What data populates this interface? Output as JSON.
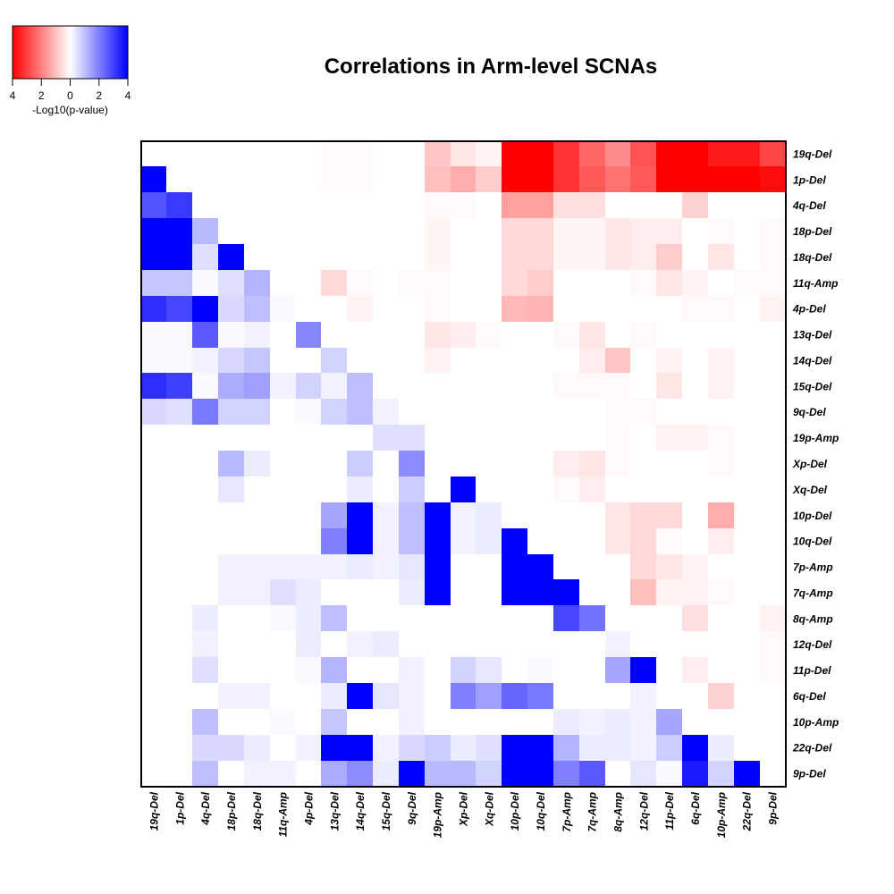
{
  "chart_data": {
    "type": "heatmap",
    "title": "Correlations in Arm-level SCNAs",
    "labels": [
      "19q-Del",
      "1p-Del",
      "4q-Del",
      "18p-Del",
      "18q-Del",
      "11q-Amp",
      "4p-Del",
      "13q-Del",
      "14q-Del",
      "15q-Del",
      "9q-Del",
      "19p-Amp",
      "Xp-Del",
      "Xq-Del",
      "10p-Del",
      "10q-Del",
      "7p-Amp",
      "7q-Amp",
      "8q-Amp",
      "12q-Del",
      "11p-Del",
      "6q-Del",
      "10p-Amp",
      "22q-Del",
      "9p-Del"
    ],
    "row_labels": [
      "19q-Del",
      "1p-Del",
      "4q-Del",
      "18p-Del",
      "18q-Del",
      "11q-Amp",
      "4p-Del",
      "13q-Del",
      "14q-Del",
      "15q-Del",
      "9q-Del",
      "19p-Amp",
      "Xp-Del",
      "Xq-Del",
      "10p-Del",
      "10q-Del",
      "7p-Amp",
      "7q-Amp",
      "8q-Amp",
      "12q-Del",
      "11p-Del",
      "6q-Del",
      "10p-Amp",
      "22q-Del",
      "9p-Del"
    ],
    "col_labels": [
      "19q-Del",
      "1p-Del",
      "4q-Del",
      "18p-Del",
      "18q-Del",
      "11q-Amp",
      "4p-Del",
      "13q-Del",
      "14q-Del",
      "15q-Del",
      "9q-Del",
      "19p-Amp",
      "Xp-Del",
      "Xq-Del",
      "10p-Del",
      "10q-Del",
      "7p-Amp",
      "7q-Amp",
      "8q-Amp",
      "12q-Del",
      "11p-Del",
      "6q-Del",
      "10p-Amp",
      "22q-Del",
      "9p-Del"
    ],
    "value_description": "Signed -Log10(p-value): positive (blue) below diagonal, negative (red) above diagonal",
    "color_scale": {
      "min": -4,
      "max": 4,
      "low_color": "#ff0000",
      "mid_color": "#ffffff",
      "high_color": "#0000ff"
    },
    "legend": {
      "title": "-Log10(p-value)",
      "ticks": [
        "4",
        "2",
        "0",
        "2",
        "4"
      ],
      "tick_values": [
        -4,
        -2,
        0,
        2,
        4
      ],
      "position": "top-left"
    },
    "values": [
      [
        0,
        0,
        0,
        0,
        0,
        0,
        0,
        -0.1,
        -0.1,
        0,
        0,
        -0.9,
        -0.4,
        -0.2,
        -4,
        -4,
        -3.2,
        -2.4,
        -1.8,
        -2.7,
        -4,
        -4,
        -3.6,
        -3.6,
        -2.9
      ],
      [
        4,
        0,
        0,
        0,
        0,
        0,
        0,
        -0.1,
        -0.1,
        0,
        0,
        -1.0,
        -1.3,
        -0.8,
        -4,
        -4,
        -3.2,
        -2.6,
        -2.2,
        -2.6,
        -4,
        -4,
        -4,
        -4,
        -3.8
      ],
      [
        2.7,
        3.1,
        0,
        0,
        0,
        0,
        0,
        0,
        0,
        0,
        0,
        -0.1,
        -0.1,
        0,
        -1.5,
        -1.5,
        -0.5,
        -0.5,
        0,
        0,
        0,
        -0.7,
        0,
        0,
        0
      ],
      [
        4,
        4,
        1.1,
        0,
        0,
        0,
        0,
        0,
        0,
        0,
        0,
        -0.15,
        0,
        0,
        -0.6,
        -0.6,
        -0.15,
        -0.15,
        -0.4,
        -0.3,
        -0.3,
        0,
        -0.1,
        0,
        -0.1
      ],
      [
        4,
        4,
        0.5,
        4,
        0,
        0,
        0,
        0,
        0,
        0,
        0,
        -0.15,
        0,
        0,
        -0.6,
        -0.6,
        -0.15,
        -0.15,
        -0.4,
        -0.3,
        -0.8,
        0,
        -0.4,
        0,
        -0.1
      ],
      [
        0.9,
        0.9,
        0.1,
        0.5,
        1.2,
        0,
        0,
        -0.6,
        -0.1,
        0,
        -0.1,
        -0.1,
        0,
        0,
        -0.6,
        -0.8,
        0,
        0,
        0,
        -0.1,
        -0.4,
        -0.2,
        0,
        -0.1,
        -0.1
      ],
      [
        3.3,
        2.9,
        4,
        0.6,
        1.0,
        0.1,
        0,
        0,
        -0.2,
        0,
        0,
        -0.1,
        0,
        0,
        -1.1,
        -1.2,
        0,
        0,
        0,
        0,
        0,
        -0.1,
        -0.1,
        0,
        -0.2
      ],
      [
        0.1,
        0.1,
        2.6,
        0.1,
        0.2,
        0,
        1.9,
        0,
        0,
        0,
        0,
        -0.4,
        -0.3,
        -0.1,
        0,
        0,
        -0.1,
        -0.4,
        0,
        -0.1,
        0,
        0,
        0,
        0,
        0
      ],
      [
        0.1,
        0.1,
        0.2,
        0.6,
        0.9,
        0,
        0,
        0.7,
        0,
        0,
        0,
        -0.2,
        0,
        0,
        0,
        0,
        0,
        -0.3,
        -0.9,
        0,
        -0.2,
        0,
        -0.2,
        0,
        0
      ],
      [
        3.3,
        3.0,
        0.1,
        1.3,
        1.5,
        0.2,
        0.7,
        0.2,
        1.0,
        0,
        0,
        0,
        0,
        0,
        0,
        0,
        -0.1,
        -0.1,
        -0.1,
        0,
        -0.4,
        0,
        -0.2,
        0,
        0
      ],
      [
        0.6,
        0.5,
        2.1,
        0.7,
        0.7,
        0,
        0.1,
        0.7,
        1.0,
        0.2,
        0,
        0,
        0,
        0,
        0,
        0,
        0,
        0,
        -0.1,
        -0.1,
        0,
        0,
        0,
        0,
        0
      ],
      [
        0,
        0,
        0,
        0,
        0,
        0,
        0,
        0,
        0,
        0.5,
        0.5,
        0,
        0,
        0,
        0,
        0,
        0,
        0,
        -0.1,
        0,
        -0.2,
        -0.2,
        -0.1,
        0,
        0
      ],
      [
        0,
        0,
        0,
        1.1,
        0.3,
        0,
        0,
        0,
        0.8,
        0,
        1.8,
        0,
        0,
        0,
        0,
        0,
        -0.3,
        -0.4,
        -0.1,
        0,
        0,
        0,
        -0.1,
        0,
        0
      ],
      [
        0,
        0,
        0,
        0.4,
        0,
        0,
        0,
        0,
        0.3,
        0,
        0.8,
        0,
        4,
        0,
        0,
        0,
        -0.1,
        -0.3,
        0,
        0,
        0,
        0,
        0,
        0,
        0
      ],
      [
        0,
        0,
        0,
        0,
        0,
        0,
        0,
        1.4,
        4,
        0.2,
        1.0,
        4,
        0.2,
        0.3,
        0,
        0,
        0,
        0,
        -0.4,
        -0.6,
        -0.6,
        0,
        -1.3,
        0,
        0
      ],
      [
        0,
        0,
        0,
        0,
        0,
        0,
        0,
        2.0,
        4,
        0.2,
        1.0,
        4,
        0.2,
        0.3,
        4,
        0,
        0,
        0,
        -0.4,
        -0.6,
        -0.1,
        0,
        -0.3,
        0,
        0
      ],
      [
        0,
        0,
        0,
        0.2,
        0.2,
        0.2,
        0.2,
        0.2,
        0.3,
        0.2,
        0.4,
        4,
        0,
        0,
        4,
        4,
        0,
        0,
        0,
        -0.6,
        -0.4,
        -0.2,
        0,
        0,
        0
      ],
      [
        0,
        0,
        0,
        0.2,
        0.2,
        0.5,
        0.3,
        0,
        0,
        0,
        0.3,
        4,
        0,
        0,
        4,
        4,
        4,
        0,
        0,
        -1.0,
        -0.2,
        -0.2,
        -0.1,
        0,
        0
      ],
      [
        0,
        0,
        0.3,
        0,
        0,
        0.1,
        0.3,
        1.0,
        0,
        0,
        0,
        0,
        0,
        0,
        0,
        0,
        2.9,
        2.2,
        0,
        0,
        0,
        -0.5,
        0,
        0,
        -0.2
      ],
      [
        0,
        0,
        0.2,
        0,
        0,
        0,
        0.3,
        0,
        0.2,
        0.3,
        0,
        0,
        0,
        0,
        0,
        0,
        0,
        0,
        0.2,
        0,
        0,
        0,
        0,
        0,
        -0.1
      ],
      [
        0,
        0,
        0.5,
        0,
        0,
        0,
        0.1,
        1.2,
        0,
        0,
        0.2,
        0,
        0.7,
        0.4,
        0,
        0.1,
        0,
        0,
        1.4,
        4,
        0,
        -0.3,
        0,
        0,
        -0.1
      ],
      [
        0,
        0,
        0,
        0.2,
        0.2,
        0,
        0,
        0.3,
        4,
        0.4,
        0.2,
        0,
        2.0,
        1.5,
        2.4,
        2.1,
        0,
        0,
        0,
        0.2,
        0,
        0,
        -0.7,
        0,
        0
      ],
      [
        0,
        0,
        1.0,
        0,
        0,
        0.1,
        0,
        0.9,
        0,
        0,
        0.2,
        0,
        0,
        0,
        0,
        0,
        0.3,
        0.2,
        0.3,
        0.2,
        1.4,
        0,
        0,
        0,
        0
      ],
      [
        0,
        0,
        0.6,
        0.6,
        0.3,
        0,
        0.2,
        4,
        4,
        0.2,
        0.6,
        0.8,
        0.3,
        0.5,
        4,
        4,
        1.2,
        0.3,
        0.3,
        0.2,
        0.8,
        4,
        0.3,
        0,
        0
      ],
      [
        0,
        0,
        1.0,
        0,
        0.2,
        0.2,
        0,
        1.3,
        1.8,
        0.3,
        4,
        1.1,
        1.1,
        0.7,
        4,
        4,
        2.0,
        2.6,
        0,
        0.4,
        0.1,
        3.6,
        0.7,
        4,
        0
      ]
    ]
  }
}
